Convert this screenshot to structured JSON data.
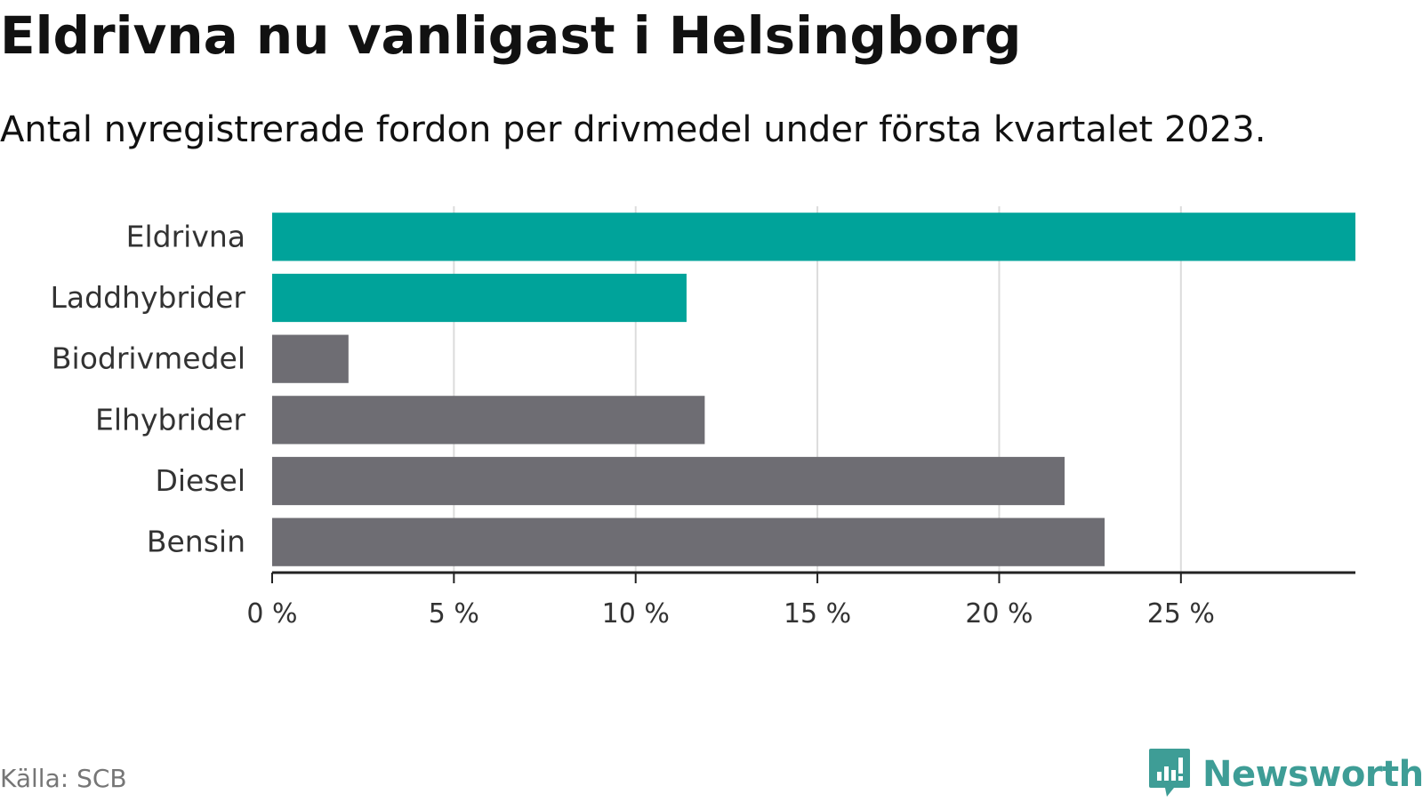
{
  "title": "Eldrivna nu vanligast i Helsingborg",
  "subtitle": "Antal nyregistrerade fordon per drivmedel under första kvartalet 2023.",
  "source": "Källa: SCB",
  "brand": {
    "name": "Newsworthy",
    "icon": "newsworthy-logo-icon",
    "color": "#3e9d96"
  },
  "colors": {
    "highlight": "#00a39a",
    "default": "#6e6d73",
    "grid": "#dcdcdc",
    "axis": "#222222"
  },
  "chart_data": {
    "type": "bar",
    "orientation": "horizontal",
    "categories": [
      "Eldrivna",
      "Laddhybrider",
      "Biodrivmedel",
      "Elhybrider",
      "Diesel",
      "Bensin"
    ],
    "values": [
      29.8,
      11.4,
      2.1,
      11.9,
      21.8,
      22.9
    ],
    "highlighted": [
      "Eldrivna",
      "Laddhybrider"
    ],
    "unit": "%",
    "xlim": [
      0,
      29.8
    ],
    "xticks": [
      0,
      5,
      10,
      15,
      20,
      25
    ],
    "xtick_labels": [
      "0 %",
      "5 %",
      "10 %",
      "15 %",
      "20 %",
      "25 %"
    ],
    "grid": true,
    "legend": "none"
  }
}
